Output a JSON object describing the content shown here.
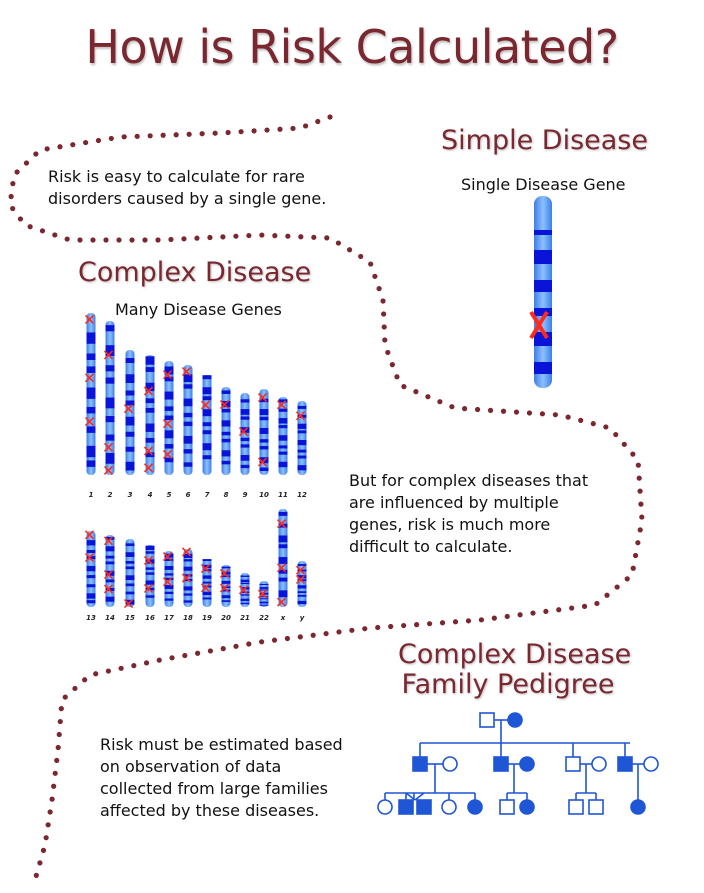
{
  "title": "How is Risk Calculated?",
  "simple": {
    "heading": "Simple Disease",
    "subheading": "Single Disease Gene",
    "text": "Risk is easy to calculate for rare disorders caused by a single gene."
  },
  "complex": {
    "heading": "Complex Disease",
    "subheading": "Many Disease Genes",
    "text": "But for complex diseases that are influenced by multiple genes, risk is much more difficult to calculate.",
    "row1_labels": [
      "1",
      "2",
      "3",
      "4",
      "5",
      "6",
      "7",
      "8",
      "9",
      "10",
      "11",
      "12"
    ],
    "row2_labels": [
      "13",
      "14",
      "15",
      "16",
      "17",
      "18",
      "19",
      "20",
      "21",
      "22",
      "x",
      "y"
    ]
  },
  "pedigree": {
    "heading_line1": "Complex Disease",
    "heading_line2": "Family Pedigree",
    "text": "Risk must be estimated based on observation of data collected from large families affected by these diseases."
  },
  "colors": {
    "title": "#7a2730",
    "dots": "#7a2730",
    "chromosome_light": "#5b9bf0",
    "chromosome_band": "#0a14d8",
    "marker": "#ff2a1a",
    "pedigree": "#1f56d6"
  }
}
